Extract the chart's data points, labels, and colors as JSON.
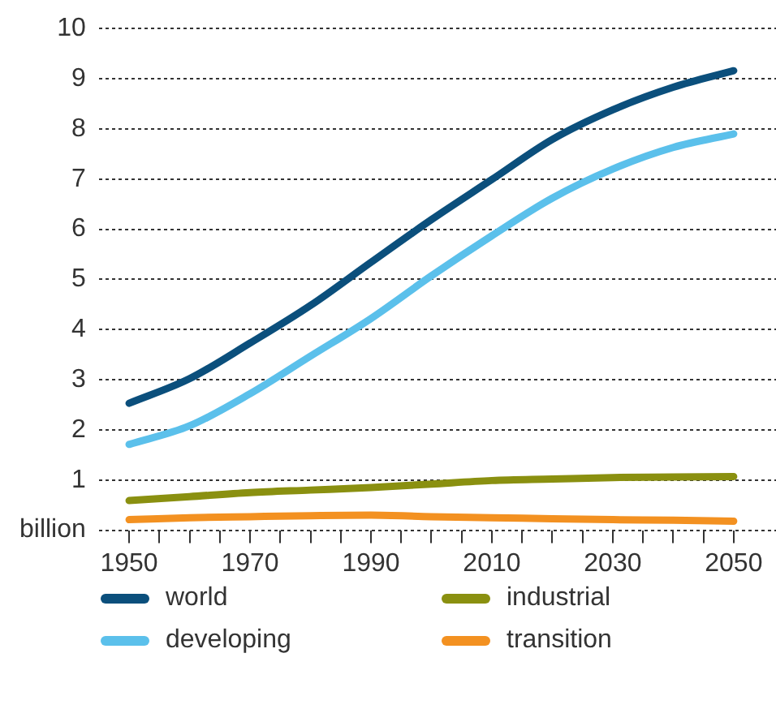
{
  "chart_data": {
    "type": "line",
    "x": [
      1950,
      1960,
      1970,
      1980,
      1990,
      2000,
      2010,
      2020,
      2030,
      2040,
      2050
    ],
    "series": [
      {
        "name": "world",
        "color": "#0b4f7c",
        "values": [
          2.53,
          3.02,
          3.73,
          4.48,
          5.34,
          6.19,
          6.99,
          7.79,
          8.38,
          8.83,
          9.16
        ]
      },
      {
        "name": "developing",
        "color": "#5bc0eb",
        "values": [
          1.71,
          2.08,
          2.72,
          3.47,
          4.22,
          5.07,
          5.87,
          6.62,
          7.2,
          7.63,
          7.9
        ]
      },
      {
        "name": "industrial",
        "color": "#8a9010",
        "values": [
          0.59,
          0.67,
          0.75,
          0.8,
          0.85,
          0.92,
          0.99,
          1.02,
          1.05,
          1.06,
          1.07
        ]
      },
      {
        "name": "transition",
        "color": "#f39121",
        "values": [
          0.21,
          0.25,
          0.27,
          0.29,
          0.3,
          0.27,
          0.25,
          0.23,
          0.21,
          0.2,
          0.18
        ]
      }
    ],
    "xlim": [
      1945,
      2057
    ],
    "xticks": [
      1950,
      {
        "value": 1955,
        "label": null
      },
      {
        "value": 1960,
        "label": null
      },
      {
        "value": 1965,
        "label": null
      },
      1970,
      {
        "value": 1975,
        "label": null
      },
      {
        "value": 1980,
        "label": null
      },
      {
        "value": 1985,
        "label": null
      },
      1990,
      {
        "value": 1995,
        "label": null
      },
      {
        "value": 2000,
        "label": null
      },
      {
        "value": 2005,
        "label": null
      },
      2010,
      {
        "value": 2015,
        "label": null
      },
      {
        "value": 2020,
        "label": null
      },
      {
        "value": 2025,
        "label": null
      },
      2030,
      {
        "value": 2035,
        "label": null
      },
      {
        "value": 2040,
        "label": null
      },
      {
        "value": 2045,
        "label": null
      },
      2050
    ],
    "ylim": [
      0,
      10
    ],
    "yticks": [
      {
        "value": 0,
        "label": "billion"
      },
      1,
      2,
      3,
      4,
      5,
      6,
      7,
      8,
      9,
      10
    ],
    "grid": "y",
    "legend": "bottom",
    "marker": "none",
    "line_style": "solid"
  }
}
